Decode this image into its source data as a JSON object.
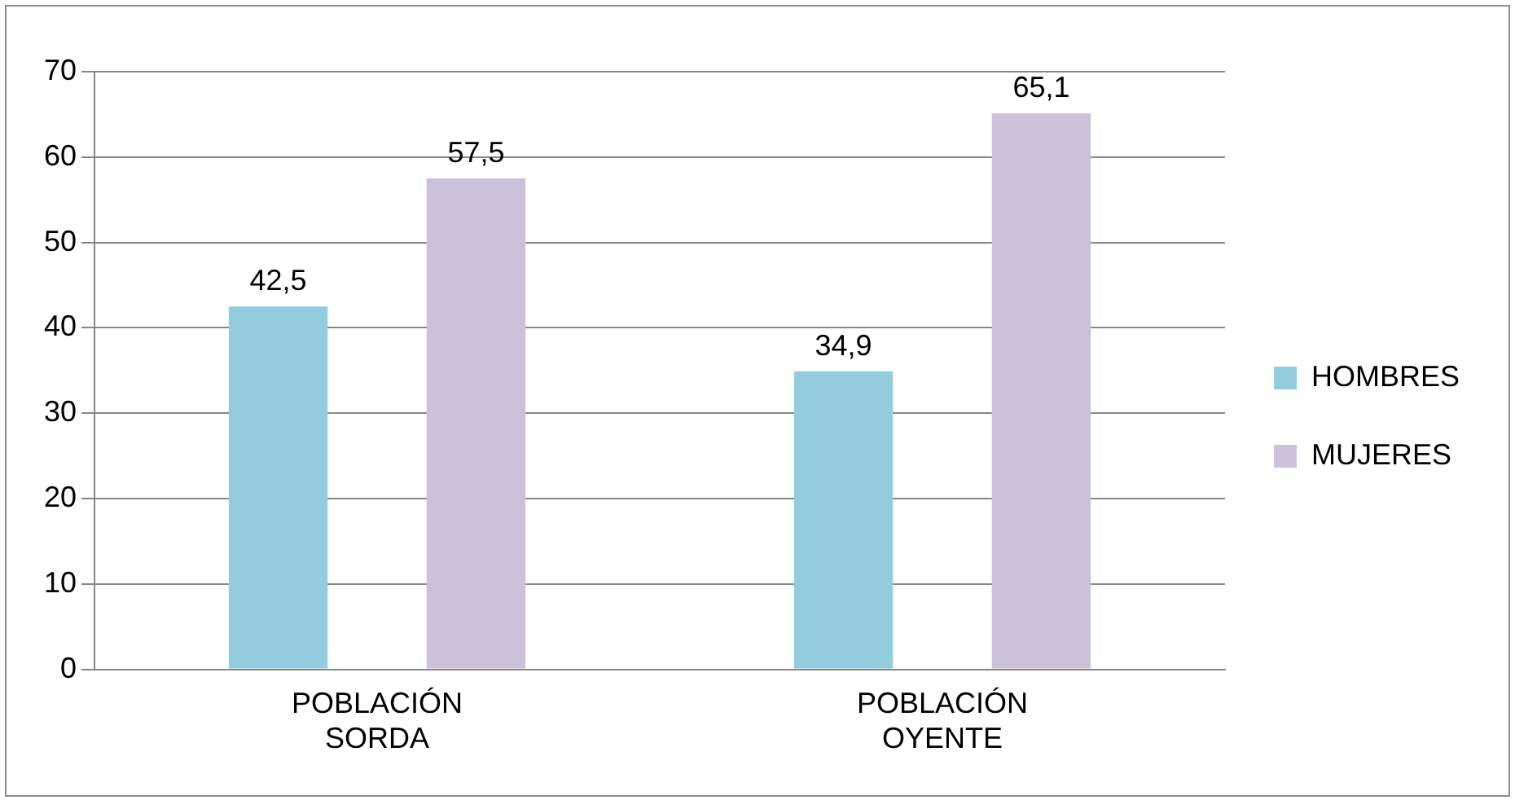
{
  "chart_data": {
    "type": "bar",
    "categories": [
      "POBLACIÓN SORDA",
      "POBLACIÓN OYENTE"
    ],
    "series": [
      {
        "name": "HOMBRES",
        "color": "#93cddd",
        "values": [
          42.5,
          34.9
        ],
        "value_labels": [
          "42,5",
          "34,9"
        ]
      },
      {
        "name": "MUJERES",
        "color": "#ccc1da",
        "values": [
          57.5,
          65.1
        ],
        "value_labels": [
          "57,5",
          "65,1"
        ]
      }
    ],
    "ylim": [
      0,
      70
    ],
    "yticks": [
      0,
      10,
      20,
      30,
      40,
      50,
      60,
      70
    ],
    "grid": "y",
    "legend": "right"
  }
}
